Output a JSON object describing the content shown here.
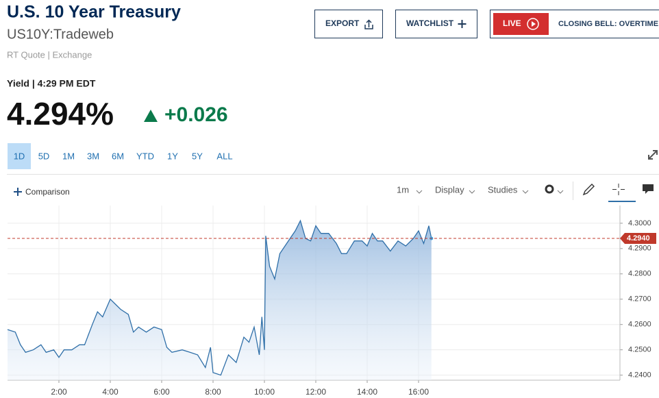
{
  "header": {
    "title": "U.S. 10 Year Treasury",
    "symbol": "US10Y:Tradeweb",
    "source": "RT Quote | Exchange",
    "yield_label": "Yield | 4:29 PM EDT",
    "price": "4.294%",
    "change": "+0.026"
  },
  "buttons": {
    "export": "EXPORT",
    "watchlist": "WATCHLIST",
    "live": "LIVE",
    "live_program": "CLOSING BELL: OVERTIME"
  },
  "tabs": [
    "1D",
    "5D",
    "1M",
    "3M",
    "6M",
    "YTD",
    "1Y",
    "5Y",
    "ALL"
  ],
  "toolbar": {
    "comparison": "Comparison",
    "interval": "1m",
    "display": "Display",
    "studies": "Studies"
  },
  "chart_data": {
    "type": "line",
    "x": [
      0,
      0.3,
      0.5,
      0.7,
      1.0,
      1.3,
      1.5,
      1.8,
      2.0,
      2.2,
      2.5,
      2.8,
      3.0,
      3.3,
      3.5,
      3.7,
      4.0,
      4.2,
      4.4,
      4.7,
      4.9,
      5.1,
      5.4,
      5.7,
      6.0,
      6.2,
      6.4,
      6.8,
      7.1,
      7.4,
      7.7,
      7.9,
      8.0,
      8.3,
      8.6,
      8.9,
      9.2,
      9.4,
      9.6,
      9.8,
      9.9,
      10.0,
      10.05,
      10.2,
      10.4,
      10.6,
      10.8,
      11.0,
      11.2,
      11.4,
      11.6,
      11.8,
      12.0,
      12.2,
      12.5,
      12.8,
      13.0,
      13.2,
      13.5,
      13.8,
      14.0,
      14.2,
      14.4,
      14.6,
      14.9,
      15.2,
      15.5,
      15.8,
      16.0,
      16.2,
      16.4,
      16.5
    ],
    "series": [
      {
        "name": "US10Y",
        "color": "#2f6fa8",
        "values": [
          4.258,
          4.257,
          4.252,
          4.249,
          4.25,
          4.252,
          4.249,
          4.25,
          4.247,
          4.25,
          4.25,
          4.252,
          4.252,
          4.26,
          4.265,
          4.263,
          4.27,
          4.268,
          4.266,
          4.264,
          4.257,
          4.259,
          4.257,
          4.259,
          4.258,
          4.251,
          4.249,
          4.25,
          4.249,
          4.248,
          4.243,
          4.251,
          4.241,
          4.24,
          4.248,
          4.245,
          4.255,
          4.253,
          4.259,
          4.248,
          4.263,
          4.25,
          4.295,
          4.283,
          4.278,
          4.288,
          4.291,
          4.294,
          4.297,
          4.301,
          4.294,
          4.293,
          4.299,
          4.296,
          4.296,
          4.292,
          4.288,
          4.288,
          4.293,
          4.293,
          4.291,
          4.296,
          4.293,
          4.293,
          4.289,
          4.293,
          4.291,
          4.294,
          4.297,
          4.292,
          4.299,
          4.294
        ]
      }
    ],
    "xlim": [
      0,
      24
    ],
    "xticks": [
      {
        "value": 2,
        "label": "2:00"
      },
      {
        "value": 4,
        "label": "4:00"
      },
      {
        "value": 6,
        "label": "6:00"
      },
      {
        "value": 8,
        "label": "8:00"
      },
      {
        "value": 10,
        "label": "10:00"
      },
      {
        "value": 12,
        "label": "12:00"
      },
      {
        "value": 14,
        "label": "14:00"
      },
      {
        "value": 16,
        "label": "16:00"
      }
    ],
    "ylim": [
      4.238,
      4.307
    ],
    "yticks": [
      {
        "value": 4.24,
        "label": "4.2400"
      },
      {
        "value": 4.25,
        "label": "4.2500"
      },
      {
        "value": 4.26,
        "label": "4.2600"
      },
      {
        "value": 4.27,
        "label": "4.2700"
      },
      {
        "value": 4.28,
        "label": "4.2800"
      },
      {
        "value": 4.29,
        "label": "4.2900"
      },
      {
        "value": 4.3,
        "label": "4.3000"
      }
    ],
    "reference_line": {
      "value": 4.294,
      "label": "4.2940",
      "color": "#c0392b"
    },
    "grid": true
  }
}
